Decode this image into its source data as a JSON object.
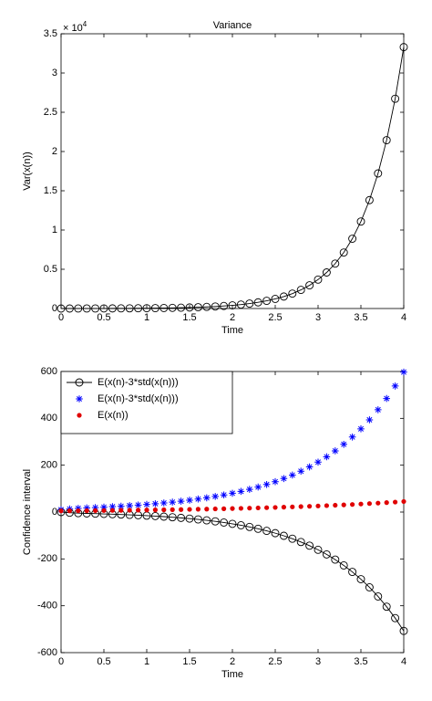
{
  "chart_data": [
    {
      "type": "line",
      "title": "Variance",
      "x_label": "Time",
      "y_label": "Var(x(n))",
      "y_multiplier": "× 10",
      "y_multiplier_exponent": "4",
      "x": [
        0,
        0.1,
        0.2,
        0.3,
        0.4,
        0.5,
        0.6,
        0.7,
        0.8,
        0.9,
        1,
        1.1,
        1.2,
        1.3,
        1.4,
        1.5,
        1.6,
        1.7,
        1.8,
        1.9,
        2,
        2.1,
        2.2,
        2.3,
        2.4,
        2.5,
        2.6,
        2.7,
        2.8,
        2.9,
        3,
        3.1,
        3.2,
        3.3,
        3.4,
        3.5,
        3.6,
        3.7,
        3.8,
        3.9,
        4
      ],
      "series": [
        {
          "name": "Var(x(n))",
          "color": "#000000",
          "marker": "o",
          "line": true,
          "values": [
            0,
            0.0001,
            0.0003,
            0.0005,
            0.0007,
            0.001,
            0.0014,
            0.0018,
            0.0024,
            0.0031,
            0.004,
            0.0051,
            0.0065,
            0.0083,
            0.0104,
            0.0131,
            0.0165,
            0.0206,
            0.0258,
            0.0323,
            0.0404,
            0.0504,
            0.063,
            0.0786,
            0.0981,
            0.1223,
            0.1525,
            0.1902,
            0.2372,
            0.2956,
            0.3685,
            0.4593,
            0.5725,
            0.7135,
            0.8892,
            1.1081,
            1.3809,
            1.7209,
            2.1444,
            2.6723,
            3.33
          ]
        }
      ],
      "xlim": [
        0,
        4
      ],
      "xticks": [
        0,
        0.5,
        1,
        1.5,
        2,
        2.5,
        3,
        3.5,
        4
      ],
      "ylim": [
        0,
        3.5
      ],
      "yticks": [
        0,
        0.5,
        1,
        1.5,
        2,
        2.5,
        3,
        3.5
      ],
      "legend": false
    },
    {
      "type": "line",
      "x_label": "Time",
      "y_label": "Confidence interval",
      "x": [
        0,
        0.1,
        0.2,
        0.3,
        0.4,
        0.5,
        0.6,
        0.7,
        0.8,
        0.9,
        1,
        1.1,
        1.2,
        1.3,
        1.4,
        1.5,
        1.6,
        1.7,
        1.8,
        1.9,
        2,
        2.1,
        2.2,
        2.3,
        2.4,
        2.5,
        2.6,
        2.7,
        2.8,
        2.9,
        3,
        3.1,
        3.2,
        3.3,
        3.4,
        3.5,
        3.6,
        3.7,
        3.8,
        3.9,
        4
      ],
      "series": [
        {
          "name": "E(x(n)-3*std(x(n)))",
          "color": "#000000",
          "marker": "o",
          "line": true,
          "values": [
            0,
            -2.7,
            -4.6,
            -5.8,
            -6.7,
            -7.9,
            -9.2,
            -10.4,
            -11.9,
            -13.5,
            -15.3,
            -17.2,
            -19.5,
            -22.1,
            -24.8,
            -27.9,
            -31.4,
            -35.4,
            -39.7,
            -44.7,
            -50.3,
            -56.4,
            -63.5,
            -71.4,
            -80.3,
            -90.1,
            -101.3,
            -113.7,
            -127.8,
            -143.5,
            -161.1,
            -180.8,
            -202.9,
            -227.7,
            -255.5,
            -286.5,
            -321.3,
            -360.2,
            -403.9,
            -452.7,
            -507.3
          ]
        },
        {
          "name": "E(x(n)-3*std(x(n)))",
          "color": "#0000ff",
          "marker": "*",
          "line": false,
          "values": [
            10,
            13.3,
            15.8,
            17.6,
            19.1,
            21.1,
            23.2,
            25,
            27.5,
            29.9,
            32.7,
            35.6,
            38.9,
            42.5,
            46.4,
            50.7,
            55.6,
            60.8,
            66.7,
            73.1,
            80.3,
            88.2,
            97.1,
            106.8,
            117.7,
            129.7,
            143.1,
            157.9,
            174.4,
            192.7,
            213.1,
            235.8,
            261.1,
            289.1,
            320.3,
            355.1,
            393.7,
            436.8,
            484.7,
            538.1,
            597.5
          ]
        },
        {
          "name": "E(x(n))",
          "color": "#e00000",
          "marker": ".",
          "line": false,
          "values": [
            5,
            5.3,
            5.6,
            5.9,
            6.2,
            6.6,
            7,
            7.3,
            7.8,
            8.2,
            8.7,
            9.2,
            9.7,
            10.2,
            10.8,
            11.4,
            12.1,
            12.7,
            13.5,
            14.2,
            15,
            15.9,
            16.8,
            17.7,
            18.7,
            19.8,
            20.9,
            22.1,
            23.3,
            24.6,
            26,
            27.5,
            29.1,
            30.7,
            32.4,
            34.3,
            36.2,
            38.3,
            40.4,
            42.7,
            45.1
          ]
        }
      ],
      "xlim": [
        0,
        4
      ],
      "xticks": [
        0,
        0.5,
        1,
        1.5,
        2,
        2.5,
        3,
        3.5,
        4
      ],
      "ylim": [
        -600,
        600
      ],
      "yticks": [
        -600,
        -400,
        -200,
        0,
        200,
        400,
        600
      ],
      "legend": "upper left"
    }
  ]
}
